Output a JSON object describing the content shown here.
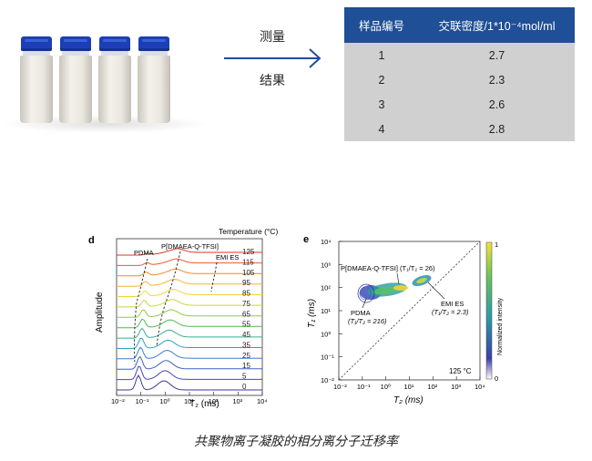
{
  "top": {
    "arrow_label_top": "测量",
    "arrow_label_bottom": "结果",
    "vial_count": 4,
    "table": {
      "headers": [
        "样品编号",
        "交联密度/1*10⁻⁴mol/ml"
      ],
      "rows": [
        [
          "1",
          "2.7"
        ],
        [
          "2",
          "2.3"
        ],
        [
          "3",
          "2.6"
        ],
        [
          "4",
          "2.8"
        ]
      ]
    }
  },
  "panel_d": {
    "label": "d",
    "title": "Temperature (°C)",
    "ylabel": "Amplitude",
    "xlabel": "T₂ (ms)",
    "xticks": [
      "10⁻²",
      "10⁻¹",
      "10⁰",
      "10¹",
      "10²",
      "10³",
      "10⁴"
    ],
    "temperatures": [
      "125",
      "115",
      "105",
      "95",
      "85",
      "75",
      "65",
      "55",
      "45",
      "35",
      "25",
      "15",
      "5",
      "0"
    ],
    "colors": [
      "#e8302a",
      "#ee5a2a",
      "#f48a2c",
      "#f8b432",
      "#f2d43a",
      "#c8d83a",
      "#8fcb46",
      "#4fb94f",
      "#36b08e",
      "#2fa0c4",
      "#3d7fd0",
      "#4460c8",
      "#4a46b8",
      "#3a3a9a"
    ],
    "annotations": [
      "PDMA",
      "P[DMAEA-Q-TFSI]",
      "EMI ES"
    ]
  },
  "panel_e": {
    "label": "e",
    "ylabel": "T₁ (ms)",
    "xlabel": "T₂ (ms)",
    "ticks": [
      "10⁻²",
      "10⁻¹",
      "10⁰",
      "10¹",
      "10²",
      "10³",
      "10⁴"
    ],
    "annotation_pdma": "PDMA",
    "annotation_pdma_ratio": "(T₁/T₂ = 216)",
    "annotation_poly": "P[DMAEA-Q-TFSI] (T₁/T₂ = 26)",
    "annotation_emi": "EMI ES",
    "annotation_emi_ratio": "(T₁/T₂ = 2.3)",
    "temp_label": "125 °C",
    "colorbar_label": "Normalized intensity",
    "colorbar_max": "1",
    "colorbar_min": "0"
  },
  "caption": "共聚物离子凝胶的相分离分子迁移率"
}
